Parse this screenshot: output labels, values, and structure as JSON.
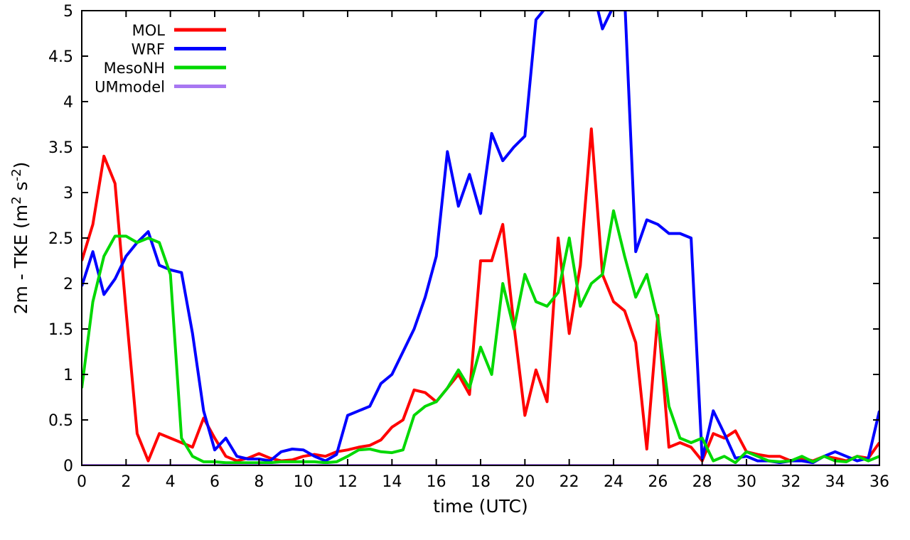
{
  "chart_data": {
    "type": "line",
    "title": "",
    "xlabel": "time (UTC)",
    "ylabel": "2m - TKE (m² s⁻²)",
    "ylabel_parts": [
      [
        "2m - TKE (m",
        0
      ],
      [
        "2",
        1
      ],
      [
        " s",
        0
      ],
      [
        "-2",
        1
      ],
      [
        ")",
        0
      ]
    ],
    "xlim": [
      0,
      36
    ],
    "ylim": [
      0,
      5
    ],
    "xticks": [
      0,
      2,
      4,
      6,
      8,
      10,
      12,
      14,
      16,
      18,
      20,
      22,
      24,
      26,
      28,
      30,
      32,
      34,
      36
    ],
    "yticks": [
      0,
      0.5,
      1,
      1.5,
      2,
      2.5,
      3,
      3.5,
      4,
      4.5,
      5
    ],
    "ytick_labels": [
      "0",
      "0.5",
      "1",
      "1.5",
      "2",
      "2.5",
      "3",
      "3.5",
      "4",
      "4.5",
      "5"
    ],
    "grid": false,
    "legend_position": "top-left",
    "x_start": 0,
    "x_step": 0.5,
    "series": [
      {
        "name": "MOL",
        "color": "#ff0000",
        "values": [
          2.25,
          2.65,
          3.4,
          3.1,
          1.7,
          0.35,
          0.05,
          0.35,
          0.3,
          0.25,
          0.2,
          0.52,
          0.3,
          0.1,
          0.05,
          0.08,
          0.13,
          0.08,
          0.05,
          0.06,
          0.1,
          0.12,
          0.1,
          0.15,
          0.17,
          0.2,
          0.22,
          0.28,
          0.42,
          0.5,
          0.83,
          0.8,
          0.7,
          0.85,
          1.0,
          0.78,
          2.25,
          2.25,
          2.65,
          1.55,
          0.55,
          1.05,
          0.7,
          2.5,
          1.45,
          2.2,
          3.7,
          2.1,
          1.8,
          1.7,
          1.35,
          0.18,
          1.65,
          0.2,
          0.25,
          0.2,
          0.05,
          0.35,
          0.3,
          0.38,
          0.15,
          0.12,
          0.1,
          0.1,
          0.05,
          0.08,
          0.05,
          0.1,
          0.08,
          0.05,
          0.1,
          0.08,
          0.25
        ]
      },
      {
        "name": "WRF",
        "color": "#0000ff",
        "values": [
          1.97,
          2.35,
          1.88,
          2.05,
          2.3,
          2.45,
          2.57,
          2.2,
          2.15,
          2.12,
          1.45,
          0.6,
          0.17,
          0.3,
          0.1,
          0.07,
          0.07,
          0.05,
          0.15,
          0.18,
          0.17,
          0.1,
          0.05,
          0.12,
          0.55,
          0.6,
          0.65,
          0.9,
          1.0,
          1.25,
          1.5,
          1.85,
          2.3,
          3.45,
          2.85,
          3.2,
          2.77,
          3.65,
          3.35,
          3.5,
          3.62,
          4.9,
          5.05,
          5.3,
          5.4,
          5.4,
          5.3,
          4.8,
          5.05,
          5.15,
          2.35,
          2.7,
          2.65,
          2.55,
          2.55,
          2.5,
          0.07,
          0.6,
          0.35,
          0.08,
          0.1,
          0.05,
          0.05,
          0.03,
          0.05,
          0.05,
          0.03,
          0.1,
          0.15,
          0.1,
          0.05,
          0.08,
          0.6
        ]
      },
      {
        "name": "MesoNH",
        "color": "#00d800",
        "values": [
          0.85,
          1.8,
          2.3,
          2.52,
          2.52,
          2.45,
          2.5,
          2.45,
          2.1,
          0.3,
          0.1,
          0.04,
          0.04,
          0.03,
          0.03,
          0.03,
          0.03,
          0.03,
          0.04,
          0.04,
          0.04,
          0.04,
          0.03,
          0.04,
          0.1,
          0.17,
          0.18,
          0.15,
          0.14,
          0.17,
          0.55,
          0.65,
          0.7,
          0.85,
          1.05,
          0.85,
          1.3,
          1.0,
          2.0,
          1.5,
          2.1,
          1.8,
          1.75,
          1.9,
          2.5,
          1.75,
          2.0,
          2.1,
          2.8,
          2.3,
          1.85,
          2.1,
          1.6,
          0.65,
          0.3,
          0.25,
          0.3,
          0.05,
          0.1,
          0.03,
          0.15,
          0.1,
          0.05,
          0.04,
          0.05,
          0.1,
          0.04,
          0.1,
          0.05,
          0.04,
          0.1,
          0.05,
          0.1
        ]
      },
      {
        "name": "UMmodel",
        "color": "#a877f2",
        "constant": 0.0
      }
    ]
  }
}
